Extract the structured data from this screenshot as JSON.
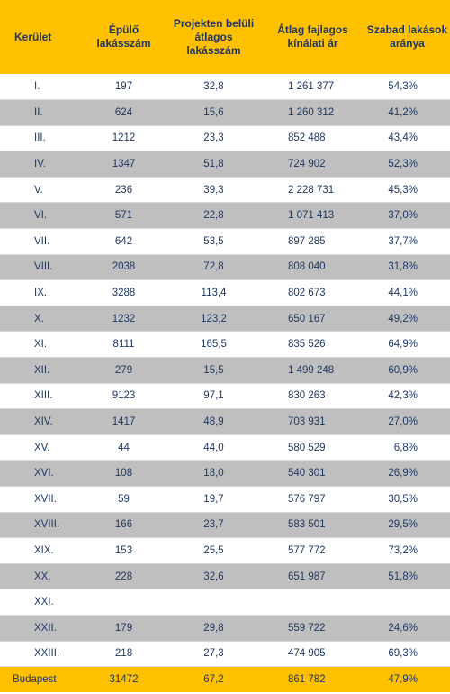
{
  "table": {
    "headers": [
      "Kerület",
      "Épülő lakásszám",
      "Projekten belüli átlagos lakásszám",
      "Átlag fajlagos kínálati ár",
      "Szabad lakások aránya"
    ],
    "rows": [
      [
        "I.",
        "197",
        "32,8",
        "1 261 377",
        "54,3%"
      ],
      [
        "II.",
        "624",
        "15,6",
        "1 260 312",
        "41,2%"
      ],
      [
        "III.",
        "1212",
        "23,3",
        "852 488",
        "43,4%"
      ],
      [
        "IV.",
        "1347",
        "51,8",
        "724 902",
        "52,3%"
      ],
      [
        "V.",
        "236",
        "39,3",
        "2 228 731",
        "45,3%"
      ],
      [
        "VI.",
        "571",
        "22,8",
        "1 071 413",
        "37,0%"
      ],
      [
        "VII.",
        "642",
        "53,5",
        "897 285",
        "37,7%"
      ],
      [
        "VIII.",
        "2038",
        "72,8",
        "808 040",
        "31,8%"
      ],
      [
        "IX.",
        "3288",
        "113,4",
        "802 673",
        "44,1%"
      ],
      [
        "X.",
        "1232",
        "123,2",
        "650 167",
        "49,2%"
      ],
      [
        "XI.",
        "8111",
        "165,5",
        "835 526",
        "64,9%"
      ],
      [
        "XII.",
        "279",
        "15,5",
        "1 499 248",
        "60,9%"
      ],
      [
        "XIII.",
        "9123",
        "97,1",
        "830 263",
        "42,3%"
      ],
      [
        "XIV.",
        "1417",
        "48,9",
        "703 931",
        "27,0%"
      ],
      [
        "XV.",
        "44",
        "44,0",
        "580 529",
        "6,8%"
      ],
      [
        "XVI.",
        "108",
        "18,0",
        "540 301",
        "26,9%"
      ],
      [
        "XVII.",
        "59",
        "19,7",
        "576 797",
        "30,5%"
      ],
      [
        "XVIII.",
        "166",
        "23,7",
        "583 501",
        "29,5%"
      ],
      [
        "XIX.",
        "153",
        "25,5",
        "577 772",
        "73,2%"
      ],
      [
        "XX.",
        "228",
        "32,6",
        "651 987",
        "51,8%"
      ],
      [
        "XXI.",
        "",
        "",
        "",
        ""
      ],
      [
        "XXII.",
        "179",
        "29,8",
        "559 722",
        "24,6%"
      ],
      [
        "XXIII.",
        "218",
        "27,3",
        "474 905",
        "69,3%"
      ]
    ],
    "total": [
      "Budapest",
      "31472",
      "67,2",
      "861 782",
      "47,9%"
    ]
  },
  "colors": {
    "header_bg": "#FFC000",
    "stripe_bg": "#BFBFBF",
    "text": "#1F3864"
  }
}
